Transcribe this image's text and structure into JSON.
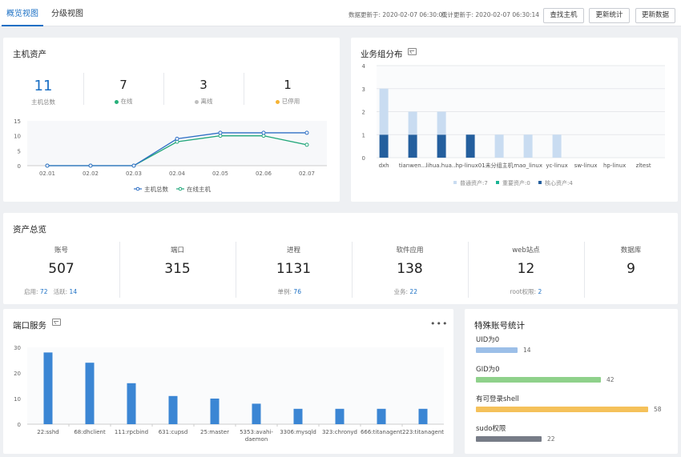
{
  "topbar": {
    "tabs": [
      "概览视图",
      "分级视图"
    ],
    "data_updated": "数据更新于: 2020-02-07 06:30:01",
    "stats_updated": "统计更新于: 2020-02-07 06:30:14",
    "buttons": {
      "find_host": "查找主机",
      "update_stats": "更新统计",
      "update_data": "更新数据"
    }
  },
  "host_assets": {
    "title": "主机资产",
    "stats": [
      {
        "value": "11",
        "label": "主机总数",
        "color": "#1a6fc4"
      },
      {
        "value": "7",
        "label": "在线",
        "dot": "#27b07a"
      },
      {
        "value": "3",
        "label": "离线",
        "dot": "#bfbfbf"
      },
      {
        "value": "1",
        "label": "已停用",
        "dot": "#f5b335"
      }
    ]
  },
  "chart_data": [
    {
      "type": "line",
      "categories": [
        "02.01",
        "02.02",
        "02.03",
        "02.04",
        "02.05",
        "02.06",
        "02.07"
      ],
      "ylim": [
        0,
        15
      ],
      "yticks": [
        0,
        5,
        10,
        15
      ],
      "series": [
        {
          "name": "主机总数",
          "values": [
            0,
            0,
            0,
            9,
            11,
            11,
            11
          ],
          "color": "#2f6fc5"
        },
        {
          "name": "在线主机",
          "values": [
            0,
            0,
            0,
            8,
            10,
            10,
            7
          ],
          "color": "#22a77a"
        }
      ]
    },
    {
      "type": "bar",
      "title": "业务组分布",
      "categories": [
        "dxh",
        "tianwen...",
        "lihua.hua...",
        "hp-linux01",
        "未分组主机",
        "mao_linux",
        "yc-linux",
        "sw-linux",
        "hp-linux",
        "zltest"
      ],
      "ylim": [
        0,
        4
      ],
      "yticks": [
        0,
        1,
        2,
        3,
        4
      ],
      "stacked": true,
      "series": [
        {
          "name": "普通资产:7",
          "values": [
            2,
            1,
            1,
            0,
            1,
            1,
            1,
            0,
            0,
            0
          ],
          "color": "#c9dcf1"
        },
        {
          "name": "重要资产:0",
          "values": [
            0,
            0,
            0,
            0,
            0,
            0,
            0,
            0,
            0,
            0
          ],
          "color": "#1ab394"
        },
        {
          "name": "核心资产:4",
          "values": [
            1,
            1,
            1,
            1,
            0,
            0,
            0,
            0,
            0,
            0
          ],
          "color": "#245f9e"
        }
      ]
    },
    {
      "type": "bar",
      "title": "端口服务",
      "categories": [
        "22:sshd",
        "68:dhclient",
        "111:rpcbind",
        "631:cupsd",
        "25:master",
        "5353:avahi-daemon",
        "3306:mysqld",
        "323:chronyd",
        "666:titanagent",
        "223:titanagent"
      ],
      "ylim": [
        0,
        30
      ],
      "yticks": [
        0,
        10,
        20,
        30
      ],
      "values": [
        28,
        24,
        16,
        11,
        10,
        8,
        6,
        6,
        6,
        6
      ],
      "color": "#3b86d4"
    }
  ],
  "biz_group": {
    "title": "业务组分布"
  },
  "asset_overview": {
    "title": "资产总览",
    "items": [
      {
        "label": "账号",
        "value": "507",
        "sub": [
          [
            "启用:",
            "72"
          ],
          [
            "活跃:",
            "14"
          ]
        ]
      },
      {
        "label": "端口",
        "value": "315",
        "sub": []
      },
      {
        "label": "进程",
        "value": "1131",
        "sub": [
          [
            "单例:",
            "76"
          ]
        ]
      },
      {
        "label": "软件应用",
        "value": "138",
        "sub": [
          [
            "业务:",
            "22"
          ]
        ]
      },
      {
        "label": "web站点",
        "value": "12",
        "sub": [
          [
            "root权限:",
            "2"
          ]
        ]
      },
      {
        "label": "数据库",
        "value": "9",
        "sub": []
      }
    ]
  },
  "port_service": {
    "title": "端口服务",
    "more": "•••"
  },
  "special_accounts": {
    "title": "特殊账号统计",
    "max": 58,
    "items": [
      {
        "label": "UID为0",
        "value": 14,
        "color": "#9cbfe8"
      },
      {
        "label": "GID为0",
        "value": 42,
        "color": "#8fd18b"
      },
      {
        "label": "有可登录shell",
        "value": 58,
        "color": "#f5c15a"
      },
      {
        "label": "sudo权限",
        "value": 22,
        "color": "#777c87"
      }
    ]
  }
}
